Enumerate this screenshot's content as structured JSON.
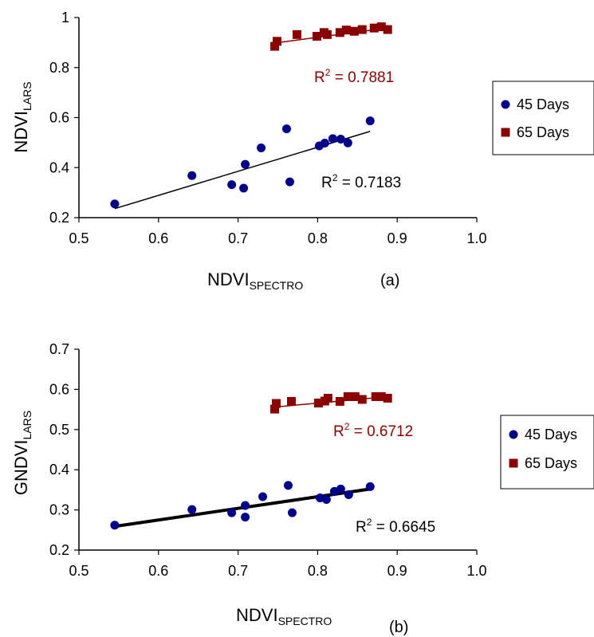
{
  "colors": {
    "series_45": "#00008B",
    "series_65": "#8B0000",
    "trend_45": "#000000",
    "trend_65": "#8B0000"
  },
  "chart_data": [
    {
      "type": "scatter",
      "panel_label": "(a)",
      "xlabel": {
        "main": "NDVI",
        "sub": "SPECTRO"
      },
      "ylabel": {
        "main": "NDVI",
        "sub": "LARS"
      },
      "xlim": [
        0.5,
        1.0
      ],
      "ylim": [
        0.2,
        1.0
      ],
      "xticks": [
        "0.5",
        "0.6",
        "0.7",
        "0.8",
        "0.9",
        "1.0"
      ],
      "yticks": [
        "0.2",
        "0.4",
        "0.6",
        "0.8",
        "1"
      ],
      "xtick_values": [
        0.5,
        0.6,
        0.7,
        0.8,
        0.9,
        1.0
      ],
      "ytick_values": [
        0.2,
        0.4,
        0.6,
        0.8,
        1.0
      ],
      "grid": false,
      "legend_position": "right",
      "series": [
        {
          "name": "45 Days",
          "marker": "circle",
          "x": [
            0.545,
            0.642,
            0.692,
            0.707,
            0.709,
            0.729,
            0.761,
            0.765,
            0.802,
            0.809,
            0.819,
            0.829,
            0.838,
            0.866
          ],
          "y": [
            0.255,
            0.368,
            0.332,
            0.318,
            0.413,
            0.479,
            0.555,
            0.343,
            0.487,
            0.498,
            0.516,
            0.514,
            0.499,
            0.587
          ],
          "trendline": {
            "x": [
              0.545,
              0.866
            ],
            "y": [
              0.236,
              0.545
            ]
          },
          "r2_label": {
            "text": "R",
            "sup": "2",
            "rest": " = 0.7183"
          }
        },
        {
          "name": "65 Days",
          "marker": "square",
          "x": [
            0.746,
            0.749,
            0.774,
            0.799,
            0.808,
            0.812,
            0.828,
            0.836,
            0.846,
            0.856,
            0.871,
            0.88,
            0.888
          ],
          "y": [
            0.885,
            0.905,
            0.932,
            0.925,
            0.94,
            0.932,
            0.94,
            0.95,
            0.945,
            0.952,
            0.958,
            0.963,
            0.952
          ],
          "trendline": {
            "x": [
              0.746,
              0.888
            ],
            "y": [
              0.898,
              0.958
            ]
          },
          "r2_label": {
            "text": "R",
            "sup": "2",
            "rest": " = 0.7881"
          }
        }
      ]
    },
    {
      "type": "scatter",
      "panel_label": "(b)",
      "xlabel": {
        "main": "NDVI",
        "sub": "SPECTRO"
      },
      "ylabel": {
        "main": "GNDVI",
        "sub": "LARS"
      },
      "xlim": [
        0.5,
        1.0
      ],
      "ylim": [
        0.2,
        0.7
      ],
      "xticks": [
        "0.5",
        "0.6",
        "0.7",
        "0.8",
        "0.9",
        "1.0"
      ],
      "yticks": [
        "0.2",
        "0.3",
        "0.4",
        "0.5",
        "0.6",
        "0.7"
      ],
      "xtick_values": [
        0.5,
        0.6,
        0.7,
        0.8,
        0.9,
        1.0
      ],
      "ytick_values": [
        0.2,
        0.3,
        0.4,
        0.5,
        0.6,
        0.7
      ],
      "grid": false,
      "legend_position": "right",
      "series": [
        {
          "name": "45 Days",
          "marker": "circle",
          "x": [
            0.545,
            0.642,
            0.692,
            0.709,
            0.709,
            0.731,
            0.763,
            0.768,
            0.803,
            0.811,
            0.821,
            0.829,
            0.839,
            0.866
          ],
          "y": [
            0.262,
            0.301,
            0.293,
            0.311,
            0.282,
            0.333,
            0.361,
            0.293,
            0.33,
            0.326,
            0.346,
            0.352,
            0.338,
            0.358
          ],
          "trendline": {
            "x": [
              0.545,
              0.866
            ],
            "y": [
              0.259,
              0.352
            ]
          },
          "r2_label": {
            "text": "R",
            "sup": "2",
            "rest": " = 0.6645"
          }
        },
        {
          "name": "65 Days",
          "marker": "square",
          "x": [
            0.746,
            0.748,
            0.767,
            0.801,
            0.809,
            0.813,
            0.828,
            0.838,
            0.847,
            0.856,
            0.873,
            0.88,
            0.888
          ],
          "y": [
            0.551,
            0.565,
            0.57,
            0.566,
            0.571,
            0.578,
            0.57,
            0.582,
            0.582,
            0.575,
            0.582,
            0.582,
            0.578
          ],
          "trendline": {
            "x": [
              0.746,
              0.888
            ],
            "y": [
              0.556,
              0.582
            ]
          },
          "r2_label": {
            "text": "R",
            "sup": "2",
            "rest": " = 0.6712"
          }
        }
      ]
    }
  ]
}
